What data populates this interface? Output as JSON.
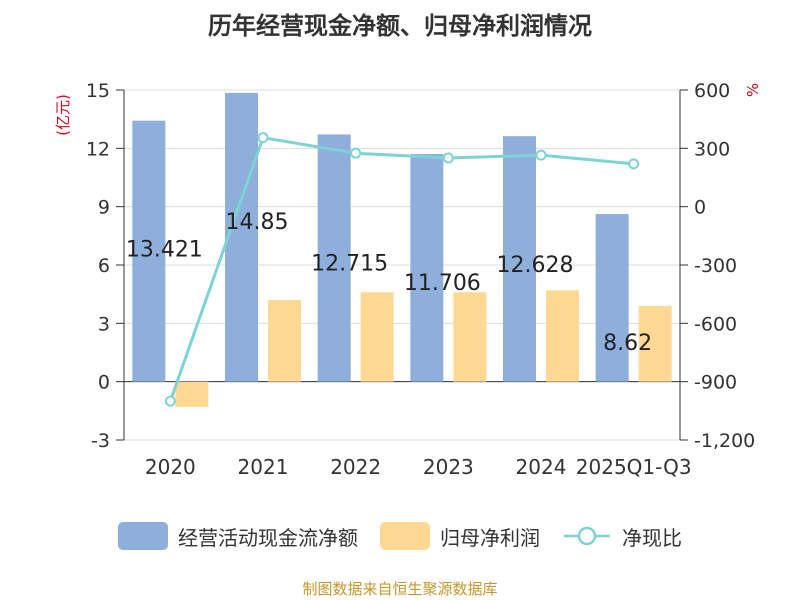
{
  "chart_data": {
    "type": "bar",
    "title": "历年经营现金净额、归母净利润情况",
    "categories": [
      "2020",
      "2021",
      "2022",
      "2023",
      "2024",
      "2025Q1-Q3"
    ],
    "series": [
      {
        "name": "经营活动现金流净额",
        "type": "bar",
        "axis": "left",
        "values": [
          13.421,
          14.85,
          12.715,
          11.706,
          12.628,
          8.62
        ],
        "labels": [
          "13.421",
          "14.85",
          "12.715",
          "11.706",
          "12.628",
          "8.62"
        ]
      },
      {
        "name": "归母净利润",
        "type": "bar",
        "axis": "left",
        "values": [
          -1.3,
          4.2,
          4.6,
          4.6,
          4.7,
          3.9
        ]
      },
      {
        "name": "净现比",
        "type": "line",
        "axis": "right",
        "values": [
          -1000,
          355,
          275,
          250,
          265,
          220
        ]
      }
    ],
    "left_axis": {
      "label": "(亿元)",
      "ylim": [
        -3,
        15
      ],
      "ticks": [
        -3,
        0,
        3,
        6,
        9,
        12,
        15
      ],
      "tick_labels": [
        "-3",
        "0",
        "3",
        "6",
        "9",
        "12",
        "15"
      ]
    },
    "right_axis": {
      "label": "%",
      "ylim": [
        -1200,
        600
      ],
      "ticks": [
        -1200,
        -900,
        -600,
        -300,
        0,
        300,
        600
      ],
      "tick_labels": [
        "-1,200",
        "-900",
        "-600",
        "-300",
        "0",
        "300",
        "600"
      ]
    },
    "grid": true,
    "legend_position": "bottom",
    "colors": {
      "cashflow": "#8eaedb",
      "profit": "#ffd894",
      "ratio": "#7dd3d6",
      "axis_label": "#d9001b",
      "grid": "#dddddd",
      "axis": "#333333"
    }
  },
  "source": "制图数据来自恒生聚源数据库"
}
